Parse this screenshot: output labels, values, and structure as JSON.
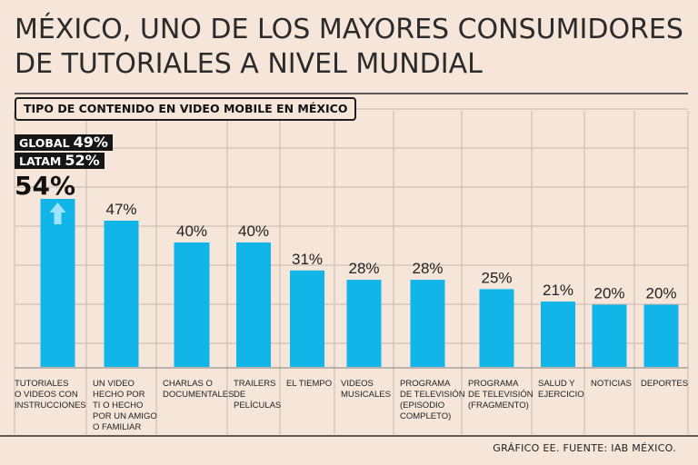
{
  "title_lines": [
    "MÉXICO, UNO DE LOS MAYORES CONSUMIDORES",
    "DE TUTORIALES A NIVEL MUNDIAL"
  ],
  "subtitle": "TIPO DE CONTENIDO EN VIDEO MOBILE EN MÉXICO",
  "benchmarks": [
    {
      "label": "GLOBAL",
      "value": "49%"
    },
    {
      "label": "LATAM",
      "value": "52%"
    }
  ],
  "source": "GRÁFICO EE. FUENTE: IAB MÉXICO.",
  "colors": {
    "bar": "#12b5e8",
    "background": "#f6e5d9",
    "grid": "#c9b8ad",
    "arrow": "#9fe3ff"
  },
  "chart_data": {
    "type": "bar",
    "title": "TIPO DE CONTENIDO EN VIDEO MOBILE EN MÉXICO",
    "unit": "%",
    "ylim": [
      0,
      60
    ],
    "grid": true,
    "highlight_index": 0,
    "categories": [
      [
        "TUTORIALES",
        "O VIDEOS CON",
        "INSTRUCCIONES"
      ],
      [
        "UN VIDEO",
        "HECHO POR",
        "TI O HECHO",
        "POR UN AMIGO",
        "O FAMILIAR"
      ],
      [
        "CHARLAS O",
        "DOCUMENTALES"
      ],
      [
        "TRAILERS",
        "DE",
        "PELÍCULAS"
      ],
      [
        "EL TIEMPO"
      ],
      [
        "VIDEOS",
        "MUSICALES"
      ],
      [
        "PROGRAMA",
        "DE TELEVISIÓN",
        "(EPISODIO",
        "COMPLETO)"
      ],
      [
        "PROGRAMA",
        "DE TELEVISIÓN",
        "(FRAGMENTO)"
      ],
      [
        "SALUD Y",
        "EJERCICIO"
      ],
      [
        "NOTICIAS"
      ],
      [
        "DEPORTES"
      ]
    ],
    "values": [
      54,
      47,
      40,
      40,
      31,
      28,
      28,
      25,
      21,
      20,
      20
    ],
    "value_labels": [
      "54%",
      "47%",
      "40%",
      "40%",
      "31%",
      "28%",
      "28%",
      "25%",
      "21%",
      "20%",
      "20%"
    ]
  }
}
